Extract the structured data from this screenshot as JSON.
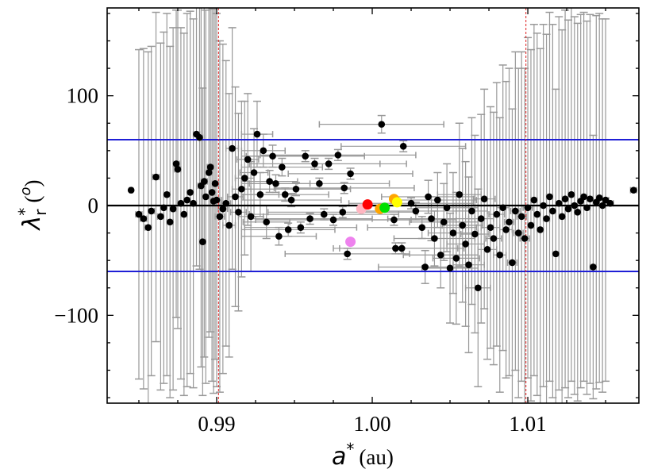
{
  "chart_data": {
    "type": "scatter",
    "title": "",
    "xlabel": {
      "symbol": "a",
      "sup": "*",
      "unit": "(au)"
    },
    "ylabel": {
      "symbol": "λ",
      "sup": "*",
      "sub": "r",
      "unit_open": "(",
      "unit_sup": "o",
      "unit_close": ")"
    },
    "xlim": [
      0.98296,
      1.01714
    ],
    "ylim": [
      -180,
      180
    ],
    "xticks": [
      {
        "value": 0.99,
        "label": "0.99"
      },
      {
        "value": 1.0,
        "label": "1.00"
      },
      {
        "value": 1.01,
        "label": "1.01"
      }
    ],
    "yticks": [
      {
        "value": 100,
        "label": "100"
      },
      {
        "value": 0,
        "label": "0"
      },
      {
        "value": -100,
        "label": "−100"
      }
    ],
    "grid": false,
    "reference_lines": {
      "horizontal_blue": [
        60,
        -60
      ],
      "horizontal_black": [
        0
      ],
      "vertical_red_dashed": [
        0.99012,
        1.00988
      ]
    },
    "colors": {
      "points": "#000000",
      "errorbars": "#999999",
      "blue_lines": "#1f1fd6",
      "red_lines": "#e02020",
      "zero_line": "#000000"
    },
    "highlighted_points": [
      {
        "x": 0.9986,
        "y": -33,
        "color": "#ee82ee"
      },
      {
        "x": 0.9993,
        "y": -3,
        "color": "#ffb6c1"
      },
      {
        "x": 0.9997,
        "y": 1,
        "color": "#ff0000"
      },
      {
        "x": 1.0005,
        "y": -3,
        "color": "#ffa500"
      },
      {
        "x": 1.0008,
        "y": -2,
        "color": "#00e000"
      },
      {
        "x": 1.0014,
        "y": 6,
        "color": "#ffa500"
      },
      {
        "x": 1.0016,
        "y": 3,
        "color": "#ffff00"
      }
    ],
    "series_format": [
      "x",
      "y",
      "xerr",
      "yerr"
    ],
    "points": [
      [
        0.9845,
        14,
        0.0001,
        0
      ],
      [
        0.985,
        -8,
        0.0002,
        150
      ],
      [
        0.9853,
        -12,
        0.0002,
        155
      ],
      [
        0.9856,
        -20,
        0.0002,
        160
      ],
      [
        0.9858,
        -5,
        0.0002,
        150
      ],
      [
        0.9861,
        26,
        0.0002,
        150
      ],
      [
        0.9864,
        -10,
        0.0002,
        158
      ],
      [
        0.9866,
        -2,
        0.0002,
        160
      ],
      [
        0.9868,
        10,
        0.0002,
        165
      ],
      [
        0.987,
        -15,
        0.0002,
        160
      ],
      [
        0.9872,
        -3,
        0.0002,
        165
      ],
      [
        0.9874,
        38,
        0.0002,
        140
      ],
      [
        0.9875,
        33,
        0.0002,
        145
      ],
      [
        0.9877,
        2,
        0.0002,
        160
      ],
      [
        0.9879,
        -8,
        0.0002,
        165
      ],
      [
        0.9881,
        5,
        0.0002,
        170
      ],
      [
        0.9883,
        12,
        0.0002,
        165
      ],
      [
        0.9885,
        2,
        0.0002,
        168
      ],
      [
        0.9887,
        65,
        0.0002,
        120
      ],
      [
        0.9889,
        62,
        0.0002,
        120
      ],
      [
        0.989,
        18,
        0.0002,
        165
      ],
      [
        0.9891,
        -33,
        0.0002,
        140
      ],
      [
        0.9892,
        22,
        0.0002,
        160
      ],
      [
        0.9893,
        8,
        0.0002,
        170
      ],
      [
        0.9895,
        30,
        0.0002,
        150
      ],
      [
        0.9896,
        35,
        0.0002,
        150
      ],
      [
        0.9897,
        12,
        0.0002,
        172
      ],
      [
        0.9898,
        4,
        0.0002,
        175
      ],
      [
        0.9899,
        20,
        0.0002,
        160
      ],
      [
        0.99,
        5,
        0.0003,
        170
      ],
      [
        0.9902,
        -10,
        0.0003,
        160
      ],
      [
        0.9904,
        -3,
        0.0003,
        150
      ],
      [
        0.9906,
        2,
        0.0003,
        130
      ],
      [
        0.9908,
        -18,
        0.0004,
        120
      ],
      [
        0.991,
        52,
        0.0004,
        110
      ],
      [
        0.9912,
        8,
        0.0005,
        100
      ],
      [
        0.9914,
        -6,
        0.0005,
        90
      ],
      [
        0.9916,
        15,
        0.0006,
        80
      ],
      [
        0.9918,
        25,
        0.0006,
        70
      ],
      [
        0.992,
        42,
        0.0007,
        60
      ],
      [
        0.9922,
        -10,
        0.0008,
        50
      ],
      [
        0.9924,
        30,
        0.0009,
        40
      ],
      [
        0.9926,
        65,
        0.001,
        30
      ],
      [
        0.9928,
        10,
        0.0012,
        20
      ],
      [
        0.993,
        50,
        0.0014,
        15
      ],
      [
        0.9932,
        -15,
        0.0015,
        15
      ],
      [
        0.9934,
        22,
        0.0018,
        10
      ],
      [
        0.9936,
        45,
        0.002,
        10
      ],
      [
        0.9938,
        20,
        0.0022,
        8
      ],
      [
        0.994,
        -28,
        0.0024,
        8
      ],
      [
        0.9942,
        35,
        0.0026,
        8
      ],
      [
        0.9944,
        10,
        0.0028,
        6
      ],
      [
        0.9946,
        -22,
        0.003,
        6
      ],
      [
        0.9948,
        5,
        0.0032,
        6
      ],
      [
        0.9951,
        15,
        0.0035,
        6
      ],
      [
        0.9954,
        -20,
        0.0036,
        5
      ],
      [
        0.9957,
        45,
        0.0038,
        5
      ],
      [
        0.996,
        -12,
        0.004,
        5
      ],
      [
        0.9963,
        38,
        0.0042,
        5
      ],
      [
        0.9966,
        20,
        0.0045,
        5
      ],
      [
        0.9969,
        -8,
        0.0048,
        5
      ],
      [
        0.9972,
        38,
        0.005,
        5
      ],
      [
        0.9975,
        -13,
        0.005,
        5
      ],
      [
        0.9978,
        46,
        0.005,
        5
      ],
      [
        0.9981,
        -6,
        0.0048,
        5
      ],
      [
        0.9982,
        16,
        0.0045,
        5
      ],
      [
        0.9984,
        -44,
        0.004,
        5
      ],
      [
        0.9986,
        29,
        0.004,
        5
      ],
      [
        1.0006,
        74,
        0.004,
        8
      ],
      [
        1.0014,
        -13,
        0.004,
        5
      ],
      [
        1.0015,
        -39,
        0.004,
        5
      ],
      [
        1.0019,
        -39,
        0.004,
        5
      ],
      [
        1.002,
        54,
        0.004,
        5
      ],
      [
        1.0025,
        2,
        0.004,
        5
      ],
      [
        1.0028,
        -5,
        0.0035,
        8
      ],
      [
        1.0032,
        -20,
        0.0035,
        10
      ],
      [
        1.0034,
        -56,
        0.003,
        15
      ],
      [
        1.0036,
        8,
        0.003,
        15
      ],
      [
        1.0038,
        -12,
        0.0028,
        20
      ],
      [
        1.004,
        -30,
        0.0026,
        25
      ],
      [
        1.0042,
        5,
        0.0025,
        25
      ],
      [
        1.0044,
        -45,
        0.0024,
        30
      ],
      [
        1.0046,
        -15,
        0.0022,
        35
      ],
      [
        1.0048,
        -2,
        0.002,
        40
      ],
      [
        1.005,
        -57,
        0.0018,
        50
      ],
      [
        1.0052,
        -25,
        0.0016,
        55
      ],
      [
        1.0054,
        -48,
        0.0015,
        60
      ],
      [
        1.0056,
        10,
        0.0014,
        65
      ],
      [
        1.0058,
        -18,
        0.0013,
        70
      ],
      [
        1.006,
        -35,
        0.0012,
        75
      ],
      [
        1.0062,
        -54,
        0.001,
        80
      ],
      [
        1.0064,
        -5,
        0.001,
        85
      ],
      [
        1.0066,
        -26,
        0.0009,
        90
      ],
      [
        1.0068,
        -75,
        0.0008,
        90
      ],
      [
        1.007,
        -12,
        0.0008,
        95
      ],
      [
        1.0072,
        6,
        0.0007,
        100
      ],
      [
        1.0074,
        -40,
        0.0006,
        100
      ],
      [
        1.0076,
        -20,
        0.0006,
        110
      ],
      [
        1.0078,
        -30,
        0.0005,
        115
      ],
      [
        1.008,
        -8,
        0.0005,
        120
      ],
      [
        1.0082,
        -45,
        0.0004,
        125
      ],
      [
        1.0084,
        -2,
        0.0004,
        130
      ],
      [
        1.0086,
        -22,
        0.0004,
        135
      ],
      [
        1.0088,
        -15,
        0.0003,
        140
      ],
      [
        1.009,
        -52,
        0.0003,
        140
      ],
      [
        1.0092,
        -5,
        0.0003,
        145
      ],
      [
        1.0094,
        -25,
        0.0003,
        150
      ],
      [
        1.0096,
        -10,
        0.0003,
        150
      ],
      [
        1.0098,
        -30,
        0.0003,
        155
      ],
      [
        1.01,
        -2,
        0.0003,
        155
      ],
      [
        1.0102,
        -18,
        0.0002,
        160
      ],
      [
        1.0104,
        5,
        0.0002,
        160
      ],
      [
        1.0106,
        -8,
        0.0002,
        165
      ],
      [
        1.0108,
        -22,
        0.0002,
        165
      ],
      [
        1.011,
        0,
        0.0002,
        165
      ],
      [
        1.0112,
        -12,
        0.0002,
        168
      ],
      [
        1.0114,
        8,
        0.0002,
        168
      ],
      [
        1.0116,
        -5,
        0.0002,
        170
      ],
      [
        1.0118,
        -44,
        0.0002,
        150
      ],
      [
        1.012,
        2,
        0.0002,
        170
      ],
      [
        1.0122,
        -10,
        0.0002,
        170
      ],
      [
        1.0124,
        6,
        0.0002,
        172
      ],
      [
        1.0126,
        -3,
        0.0002,
        172
      ],
      [
        1.0128,
        10,
        0.0002,
        170
      ],
      [
        1.013,
        0,
        0.0002,
        172
      ],
      [
        1.0132,
        -6,
        0.0002,
        172
      ],
      [
        1.0134,
        4,
        0.0002,
        170
      ],
      [
        1.0136,
        8,
        0.0002,
        168
      ],
      [
        1.0138,
        -2,
        0.0002,
        170
      ],
      [
        1.014,
        6,
        0.0002,
        168
      ],
      [
        1.0142,
        -56,
        0.0002,
        120
      ],
      [
        1.0144,
        3,
        0.0002,
        170
      ],
      [
        1.0146,
        7,
        0.0002,
        168
      ],
      [
        1.0148,
        0,
        0.0002,
        170
      ],
      [
        1.015,
        5,
        0.0002,
        165
      ],
      [
        1.0153,
        2,
        0.0002,
        0
      ],
      [
        1.0168,
        14,
        0.0002,
        0
      ]
    ]
  }
}
